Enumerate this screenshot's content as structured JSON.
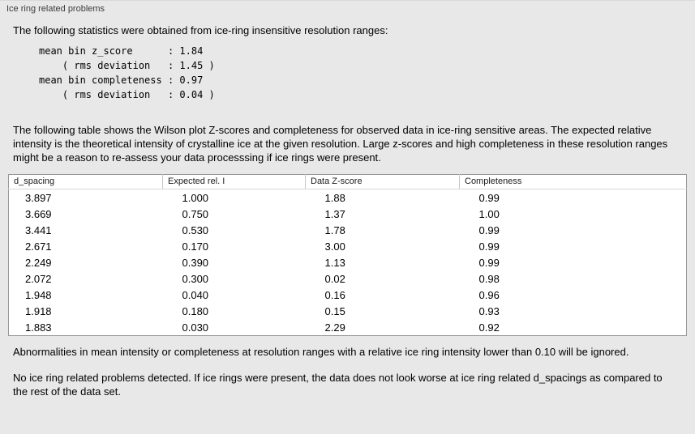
{
  "panel": {
    "title": "Ice ring related problems"
  },
  "intro": "The following statistics were obtained from ice-ring insensitive resolution ranges:",
  "stats_block": "mean bin z_score      : 1.84\n    ( rms deviation   : 1.45 )\nmean bin completeness : 0.97\n    ( rms deviation   : 0.04 )",
  "table_intro": "The following table shows the Wilson plot Z-scores and completeness for observed data in ice-ring sensitive areas. The expected relative intensity is the theoretical intensity of crystalline ice at the given resolution. Large z-scores and high completeness in these resolution ranges might be a reason to re-assess your data processsing if ice rings were present.",
  "table": {
    "headers": [
      "d_spacing",
      "Expected rel. I",
      "Data Z-score",
      "Completeness"
    ],
    "rows": [
      [
        "3.897",
        "1.000",
        "1.88",
        "0.99"
      ],
      [
        "3.669",
        "0.750",
        "1.37",
        "1.00"
      ],
      [
        "3.441",
        "0.530",
        "1.78",
        "0.99"
      ],
      [
        "2.671",
        "0.170",
        "3.00",
        "0.99"
      ],
      [
        "2.249",
        "0.390",
        "1.13",
        "0.99"
      ],
      [
        "2.072",
        "0.300",
        "0.02",
        "0.98"
      ],
      [
        "1.948",
        "0.040",
        "0.16",
        "0.96"
      ],
      [
        "1.918",
        "0.180",
        "0.15",
        "0.93"
      ],
      [
        "1.883",
        "0.030",
        "2.29",
        "0.92"
      ]
    ]
  },
  "note_ignore": "Abnormalities in mean intensity or completeness at resolution ranges with a relative ice ring intensity lower than 0.10 will be ignored.",
  "conclusion": "No ice ring related problems detected. If ice rings were present, the data does not look worse at ice ring related d_spacings as compared to the rest of the data set."
}
